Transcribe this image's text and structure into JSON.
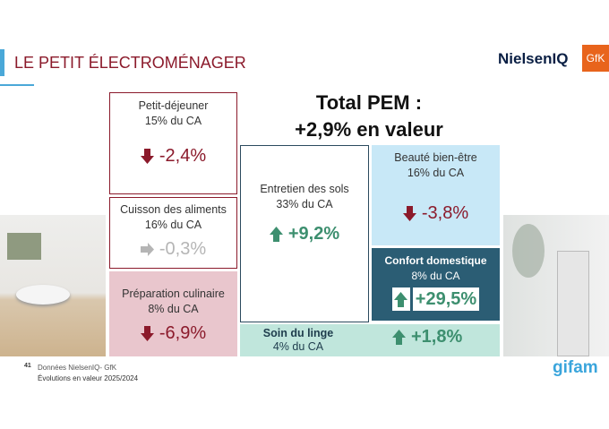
{
  "header": {
    "title": "LE PETIT ÉLECTROMÉNAGER",
    "logos": [
      "NielsenIQ",
      "GfK"
    ]
  },
  "total": {
    "line1": "Total PEM :",
    "line2": "+2,9% en valeur"
  },
  "segments": [
    {
      "name": "Petit-déjeuner",
      "share": "15% du CA",
      "change": "-2,4%",
      "trend": "down"
    },
    {
      "name": "Cuisson des aliments",
      "share": "16% du CA",
      "change": "-0,3%",
      "trend": "flat"
    },
    {
      "name": "Préparation culinaire",
      "share": "8% du CA",
      "change": "-6,9%",
      "trend": "down"
    },
    {
      "name": "Entretien des sols",
      "share": "33% du CA",
      "change": "+9,2%",
      "trend": "up"
    },
    {
      "name": "Beauté bien-être",
      "share": "16% du CA",
      "change": "-3,8%",
      "trend": "down"
    },
    {
      "name": "Confort domestique",
      "share": "8% du CA",
      "change": "+29,5%",
      "trend": "up"
    },
    {
      "name": "Soin du linge",
      "share": "4% du CA",
      "change": "+1,8%",
      "trend": "up"
    }
  ],
  "footer": {
    "page": "41",
    "source": "Données NielsenIQ- GfK",
    "note": "Évolutions en valeur 2025/2024",
    "logo": "gifam"
  },
  "colors": {
    "title": "#8b1a2b",
    "down": "#8b1a2b",
    "up": "#3d8f6f",
    "flat": "#b5b5b5",
    "beaute": "#c8e8f7",
    "confort": "#2b5d74",
    "linge": "#c0e6dc",
    "preparation": "#e9c6cd"
  }
}
